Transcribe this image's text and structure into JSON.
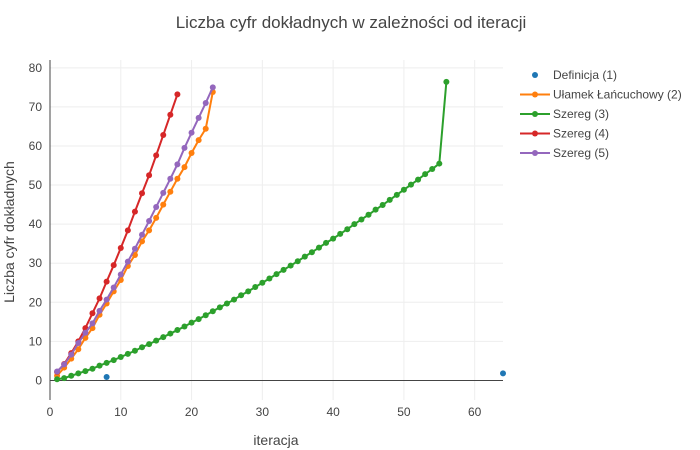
{
  "chart_data": {
    "type": "scatter",
    "title": "Liczba cyfr dokładnych w zależności od iteracji",
    "xlabel": "iteracja",
    "ylabel": "Liczba cyfr dokładnych",
    "xlim": [
      0,
      64
    ],
    "ylim": [
      -5,
      82
    ],
    "xticks": [
      0,
      10,
      20,
      30,
      40,
      50,
      60
    ],
    "yticks": [
      0,
      10,
      20,
      30,
      40,
      50,
      60,
      70,
      80
    ],
    "grid": true,
    "legend_position": "top-right",
    "series": [
      {
        "name": "Definicja (1)",
        "color": "#1f77b4",
        "mode": "markers",
        "x": [
          8,
          64
        ],
        "y": [
          0.9,
          1.8
        ]
      },
      {
        "name": "Ułamek Łańcuchowy (2)",
        "color": "#ff7f0e",
        "mode": "lines+markers",
        "x": [
          1,
          2,
          3,
          4,
          5,
          6,
          7,
          8,
          9,
          10,
          11,
          12,
          13,
          14,
          15,
          16,
          17,
          18,
          19,
          20,
          21,
          22,
          23
        ],
        "y": [
          1.2,
          3.3,
          5.6,
          8.0,
          10.9,
          13.4,
          16.8,
          19.7,
          22.8,
          25.7,
          29.3,
          32.1,
          35.6,
          38.4,
          41.6,
          45.0,
          48.3,
          51.6,
          54.6,
          58.2,
          61.5,
          64.4,
          73.8
        ]
      },
      {
        "name": "Szereg (3)",
        "color": "#2ca02c",
        "mode": "lines+markers",
        "x": [
          1,
          2,
          3,
          4,
          5,
          6,
          7,
          8,
          9,
          10,
          11,
          12,
          13,
          14,
          15,
          16,
          17,
          18,
          19,
          20,
          21,
          22,
          23,
          24,
          25,
          26,
          27,
          28,
          29,
          30,
          31,
          32,
          33,
          34,
          35,
          36,
          37,
          38,
          39,
          40,
          41,
          42,
          43,
          44,
          45,
          46,
          47,
          48,
          49,
          50,
          51,
          52,
          53,
          54,
          55,
          56
        ],
        "y": [
          0.3,
          0.6,
          1.2,
          1.8,
          2.4,
          3.0,
          3.8,
          4.5,
          5.2,
          6.0,
          6.8,
          7.6,
          8.5,
          9.3,
          10.2,
          11.1,
          12.0,
          12.9,
          13.8,
          14.8,
          15.7,
          16.7,
          17.7,
          18.7,
          19.7,
          20.7,
          21.8,
          22.8,
          23.9,
          25.0,
          26.1,
          27.2,
          28.3,
          29.4,
          30.5,
          31.7,
          32.8,
          34.0,
          35.2,
          36.3,
          37.5,
          38.7,
          40.0,
          41.2,
          42.4,
          43.7,
          44.9,
          46.2,
          47.5,
          48.8,
          50.1,
          51.4,
          52.8,
          54.1,
          55.5,
          76.4
        ]
      },
      {
        "name": "Szereg (4)",
        "color": "#d62728",
        "mode": "lines+markers",
        "x": [
          1,
          2,
          3,
          4,
          5,
          6,
          7,
          8,
          9,
          10,
          11,
          12,
          13,
          14,
          15,
          16,
          17,
          18
        ],
        "y": [
          2.2,
          4.2,
          7.0,
          10.0,
          13.4,
          17.2,
          21.0,
          25.3,
          29.5,
          33.9,
          38.4,
          43.2,
          47.9,
          52.5,
          57.6,
          62.8,
          68.0,
          73.2
        ]
      },
      {
        "name": "Szereg (5)",
        "color": "#9467bd",
        "mode": "lines+markers",
        "x": [
          1,
          2,
          3,
          4,
          5,
          6,
          7,
          8,
          9,
          10,
          11,
          12,
          13,
          14,
          15,
          16,
          17,
          18,
          19,
          20,
          21,
          22,
          23
        ],
        "y": [
          2.3,
          4.1,
          6.6,
          9.6,
          12.2,
          14.6,
          17.8,
          20.7,
          23.8,
          27.1,
          30.4,
          33.7,
          37.3,
          40.8,
          44.4,
          48.0,
          51.6,
          55.3,
          59.5,
          63.4,
          67.2,
          71.0,
          75.0
        ]
      }
    ]
  }
}
